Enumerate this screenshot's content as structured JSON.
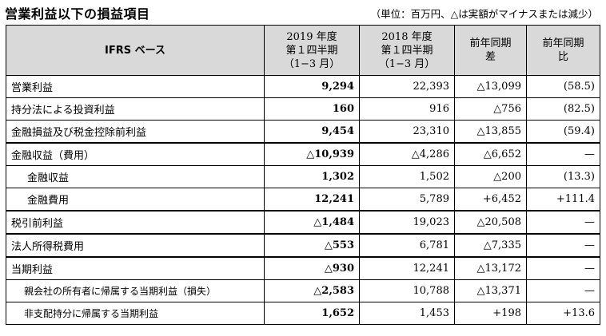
{
  "title": "営業利益以下の損益項目",
  "unit_note": "（単位：百万円、△は実額がマイナスまたは減少）",
  "table": {
    "headers": [
      {
        "lines": [
          "IFRS ベース"
        ]
      },
      {
        "lines": [
          "2019 年度",
          "第１四半期",
          "（1−3 月）"
        ]
      },
      {
        "lines": [
          "2018 年度",
          "第１四半期",
          "（1−3 月）"
        ]
      },
      {
        "lines": [
          "前年同期",
          "差"
        ]
      },
      {
        "lines": [
          "前年同期",
          "比"
        ]
      }
    ],
    "rows": [
      {
        "label": "営業利益",
        "v2019": "9,294",
        "v2018": "22,393",
        "diff": "△13,099",
        "ratio": "(58.5)",
        "indent": 0
      },
      {
        "label": "持分法による投資利益",
        "v2019": "160",
        "v2018": "916",
        "diff": "△756",
        "ratio": "(82.5)",
        "indent": 0
      },
      {
        "label": "金融損益及び税金控除前利益",
        "v2019": "9,454",
        "v2018": "23,310",
        "diff": "△13,855",
        "ratio": "(59.4)",
        "indent": 0
      },
      {
        "label": "金融収益（費用）",
        "v2019": "△10,939",
        "v2018": "△4,286",
        "diff": "△6,652",
        "ratio": "—",
        "indent": 0
      },
      {
        "label": "金融収益",
        "v2019": "1,302",
        "v2018": "1,502",
        "diff": "△200",
        "ratio": "(13.3)",
        "indent": 1
      },
      {
        "label": "金融費用",
        "v2019": "12,241",
        "v2018": "5,789",
        "diff": "+6,452",
        "ratio": "+111.4",
        "indent": 1
      },
      {
        "label": "税引前利益",
        "v2019": "△1,484",
        "v2018": "19,023",
        "diff": "△20,508",
        "ratio": "—",
        "indent": 0
      },
      {
        "label": "法人所得税費用",
        "v2019": "△553",
        "v2018": "6,781",
        "diff": "△7,335",
        "ratio": "—",
        "indent": 0
      },
      {
        "label": "当期利益",
        "v2019": "△930",
        "v2018": "12,241",
        "diff": "△13,172",
        "ratio": "—",
        "indent": 0
      },
      {
        "label": "親会社の所有者に帰属する当期利益（損失）",
        "v2019": "△2,583",
        "v2018": "10,788",
        "diff": "△13,371",
        "ratio": "—",
        "indent": 2
      },
      {
        "label": "非支配持分に帰属する当期利益",
        "v2019": "1,652",
        "v2018": "1,453",
        "diff": "+198",
        "ratio": "+13.6",
        "indent": 2
      }
    ]
  }
}
